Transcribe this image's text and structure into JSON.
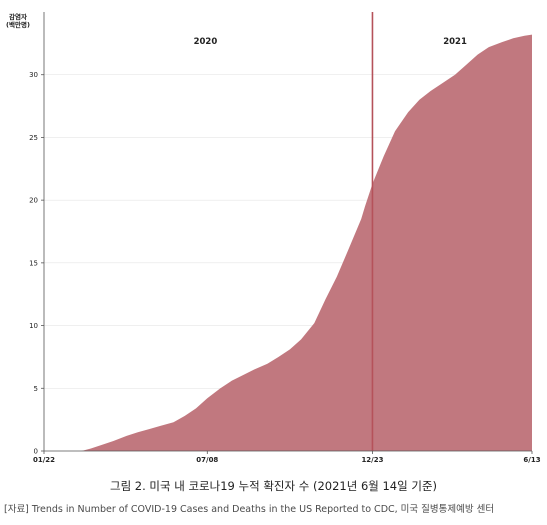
{
  "chart_data": {
    "type": "area",
    "ylabel_lines": [
      "감염자",
      "(백만명)"
    ],
    "y_ticks": [
      0,
      5,
      10,
      15,
      20,
      25,
      30
    ],
    "ylim": [
      0,
      35
    ],
    "x_ticks": [
      "01/22",
      "07/08",
      "12/23",
      "6/13"
    ],
    "year_labels": [
      "2020",
      "2021"
    ],
    "divider_at": "12/23",
    "series": [
      {
        "values": [
          [
            0,
            0
          ],
          [
            20,
            0
          ],
          [
            25,
            0.2
          ],
          [
            31,
            0.5
          ],
          [
            37,
            0.8
          ],
          [
            44,
            1.2
          ],
          [
            50,
            1.5
          ],
          [
            56,
            1.75
          ],
          [
            62,
            2.0
          ],
          [
            69,
            2.3
          ],
          [
            75,
            2.8
          ],
          [
            81,
            3.4
          ],
          [
            87,
            4.2
          ],
          [
            94,
            5.0
          ],
          [
            100,
            5.6
          ],
          [
            106,
            6.05
          ],
          [
            112,
            6.5
          ],
          [
            119,
            6.95
          ],
          [
            125,
            7.5
          ],
          [
            131,
            8.1
          ],
          [
            137,
            8.9
          ],
          [
            144,
            10.2
          ],
          [
            150,
            12.1
          ],
          [
            156,
            13.9
          ],
          [
            162,
            16.0
          ],
          [
            169,
            18.5
          ],
          [
            171,
            19.5
          ],
          [
            175,
            21.3
          ],
          [
            181,
            23.5
          ],
          [
            187,
            25.5
          ],
          [
            194,
            27.0
          ],
          [
            200,
            28.0
          ],
          [
            206,
            28.7
          ],
          [
            212,
            29.3
          ],
          [
            219,
            30.0
          ],
          [
            225,
            30.8
          ],
          [
            231,
            31.6
          ],
          [
            237,
            32.2
          ],
          [
            244,
            32.6
          ],
          [
            250,
            32.9
          ],
          [
            256,
            33.1
          ],
          [
            260,
            33.2
          ]
        ]
      }
    ],
    "colors": {
      "fill": "#c1787f",
      "divider": "#b5525a",
      "axis": "#555555",
      "grid": "#e6e6e6"
    }
  },
  "caption": "그림 2. 미국 내 코로나19 누적 확진자 수 (2021년 6월 14일 기준)",
  "source": "[자료] Trends in Number of COVID-19 Cases and Deaths in the US Reported to CDC, 미국 질병통제예방 센터"
}
